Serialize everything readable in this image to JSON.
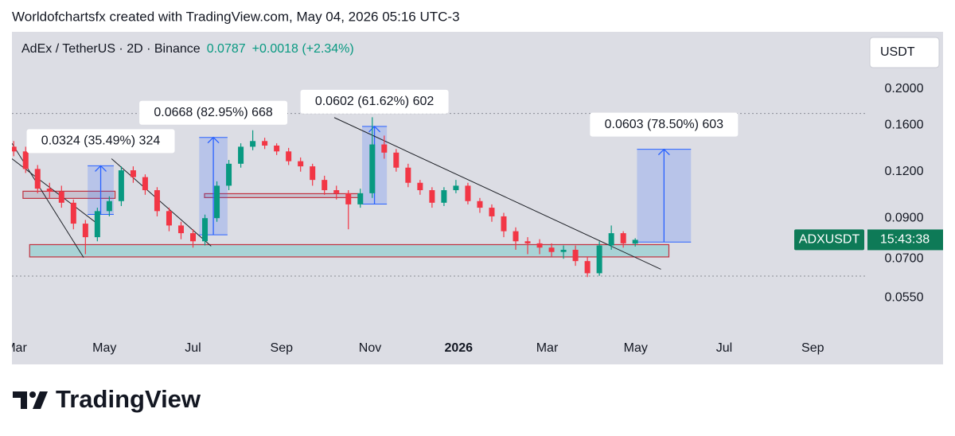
{
  "attribution": "Worldofchartsfx created with TradingView.com, May 04, 2026 05:16 UTC-3",
  "brand": "TradingView",
  "chart_data": {
    "type": "candlestick",
    "symbol": "AdEx / TetherUS · 2D · Binance",
    "last_price": 0.0787,
    "change": "+0.0018 (+2.34%)",
    "currency": "USDT",
    "price_label": "ADXUSDT",
    "countdown": "15:43:38",
    "log_scale": true,
    "grid": false,
    "up_color": "#089981",
    "down_color": "#f23645",
    "xlim": [
      2.91,
      22.2
    ],
    "xticks": [
      {
        "value": 3,
        "label": "Mar"
      },
      {
        "value": 5,
        "label": "May"
      },
      {
        "value": 7,
        "label": "Jul"
      },
      {
        "value": 9,
        "label": "Sep"
      },
      {
        "value": 11,
        "label": "Nov"
      },
      {
        "value": 13,
        "label": "2026"
      },
      {
        "value": 15,
        "label": "Mar"
      },
      {
        "value": 17,
        "label": "May"
      },
      {
        "value": 19,
        "label": "Jul"
      },
      {
        "value": 21,
        "label": "Sep"
      }
    ],
    "ylim": [
      0.045,
      0.285
    ],
    "yticks": [
      {
        "value": 0.055,
        "label": "0.0550"
      },
      {
        "value": 0.07,
        "label": "0.0700"
      },
      {
        "value": 0.09,
        "label": "0.0900"
      },
      {
        "value": 0.12,
        "label": "0.1200"
      },
      {
        "value": 0.16,
        "label": "0.1600"
      },
      {
        "value": 0.2,
        "label": "0.2000"
      }
    ],
    "x": [
      2.95,
      3.22,
      3.49,
      3.76,
      4.03,
      4.3,
      4.57,
      4.84,
      5.11,
      5.38,
      5.65,
      5.92,
      6.19,
      6.46,
      6.73,
      7.0,
      7.27,
      7.54,
      7.81,
      8.08,
      8.35,
      8.62,
      8.89,
      9.16,
      9.43,
      9.7,
      9.97,
      10.24,
      10.51,
      10.78,
      11.05,
      11.32,
      11.59,
      11.86,
      12.13,
      12.4,
      12.67,
      12.94,
      13.21,
      13.48,
      13.75,
      14.02,
      14.29,
      14.56,
      14.83,
      15.1,
      15.37,
      15.64,
      15.91,
      16.18,
      16.45,
      16.72,
      16.99
    ],
    "open": [
      0.14,
      0.136,
      0.122,
      0.108,
      0.106,
      0.099,
      0.087,
      0.08,
      0.094,
      0.1,
      0.121,
      0.116,
      0.107,
      0.094,
      0.086,
      0.082,
      0.078,
      0.09,
      0.11,
      0.126,
      0.14,
      0.145,
      0.141,
      0.136,
      0.128,
      0.124,
      0.114,
      0.107,
      0.105,
      0.098,
      0.105,
      0.142,
      0.135,
      0.123,
      0.112,
      0.107,
      0.099,
      0.107,
      0.11,
      0.1,
      0.096,
      0.091,
      0.083,
      0.078,
      0.077,
      0.075,
      0.073,
      0.074,
      0.069,
      0.064,
      0.076,
      0.082,
      0.0769
    ],
    "high": [
      0.145,
      0.14,
      0.125,
      0.112,
      0.11,
      0.101,
      0.089,
      0.096,
      0.103,
      0.124,
      0.124,
      0.118,
      0.109,
      0.096,
      0.088,
      0.084,
      0.092,
      0.113,
      0.129,
      0.143,
      0.155,
      0.148,
      0.143,
      0.139,
      0.131,
      0.126,
      0.117,
      0.11,
      0.107,
      0.108,
      0.168,
      0.15,
      0.138,
      0.126,
      0.114,
      0.109,
      0.109,
      0.114,
      0.112,
      0.102,
      0.098,
      0.093,
      0.085,
      0.08,
      0.079,
      0.077,
      0.076,
      0.076,
      0.071,
      0.078,
      0.086,
      0.083,
      0.0795
    ],
    "low": [
      0.132,
      0.119,
      0.105,
      0.102,
      0.096,
      0.084,
      0.072,
      0.078,
      0.091,
      0.097,
      0.112,
      0.104,
      0.091,
      0.083,
      0.079,
      0.075,
      0.076,
      0.088,
      0.107,
      0.123,
      0.137,
      0.138,
      0.133,
      0.125,
      0.12,
      0.11,
      0.104,
      0.101,
      0.084,
      0.096,
      0.102,
      0.13,
      0.12,
      0.109,
      0.104,
      0.096,
      0.097,
      0.105,
      0.098,
      0.093,
      0.088,
      0.08,
      0.074,
      0.072,
      0.072,
      0.071,
      0.07,
      0.067,
      0.0625,
      0.063,
      0.074,
      0.075,
      0.0755
    ],
    "close": [
      0.136,
      0.122,
      0.108,
      0.106,
      0.099,
      0.087,
      0.08,
      0.094,
      0.1,
      0.121,
      0.116,
      0.107,
      0.094,
      0.086,
      0.082,
      0.078,
      0.09,
      0.11,
      0.126,
      0.14,
      0.145,
      0.141,
      0.136,
      0.128,
      0.124,
      0.114,
      0.107,
      0.105,
      0.098,
      0.105,
      0.142,
      0.135,
      0.123,
      0.112,
      0.107,
      0.099,
      0.107,
      0.11,
      0.1,
      0.096,
      0.091,
      0.083,
      0.078,
      0.077,
      0.075,
      0.073,
      0.074,
      0.069,
      0.064,
      0.076,
      0.082,
      0.077,
      0.0787
    ],
    "zones": [
      {
        "x": [
          3.31,
          17.75
        ],
        "y": [
          0.0708,
          0.0764
        ],
        "color": "#a9d3d6"
      },
      {
        "x": [
          3.16,
          5.24
        ],
        "y": [
          0.1017,
          0.1063
        ],
        "color": "#c9c3cf"
      },
      {
        "x": [
          7.26,
          10.73
        ],
        "y": [
          0.1022,
          0.1047
        ],
        "color": "#c9c3cf"
      }
    ],
    "trendlines": [
      {
        "x": [
          2.91,
          4.53
        ],
        "y": [
          0.143,
          0.0705
        ]
      },
      {
        "x": [
          2.91,
          4.8
        ],
        "y": [
          0.13,
          0.0877
        ]
      },
      {
        "x": [
          5.16,
          7.41
        ],
        "y": [
          0.13,
          0.0757
        ]
      },
      {
        "x": [
          10.19,
          17.57
        ],
        "y": [
          0.1677,
          0.0656
        ]
      }
    ],
    "levels": [
      0.172,
      0.0629
    ],
    "measures": [
      {
        "label": "0.0324 (35.49%) 324",
        "x": [
          4.62,
          5.21
        ],
        "y": [
          0.0921,
          0.1244
        ]
      },
      {
        "label": "0.0668 (82.95%) 668",
        "x": [
          7.14,
          7.78
        ],
        "y": [
          0.0812,
          0.1483
        ]
      },
      {
        "label": "0.0602 (61.62%) 602",
        "x": [
          10.82,
          11.38
        ],
        "y": [
          0.0982,
          0.1588
        ]
      },
      {
        "label": "0.0603 (78.50%) 603",
        "x": [
          17.03,
          18.25
        ],
        "y": [
          0.0776,
          0.1378
        ]
      }
    ]
  }
}
